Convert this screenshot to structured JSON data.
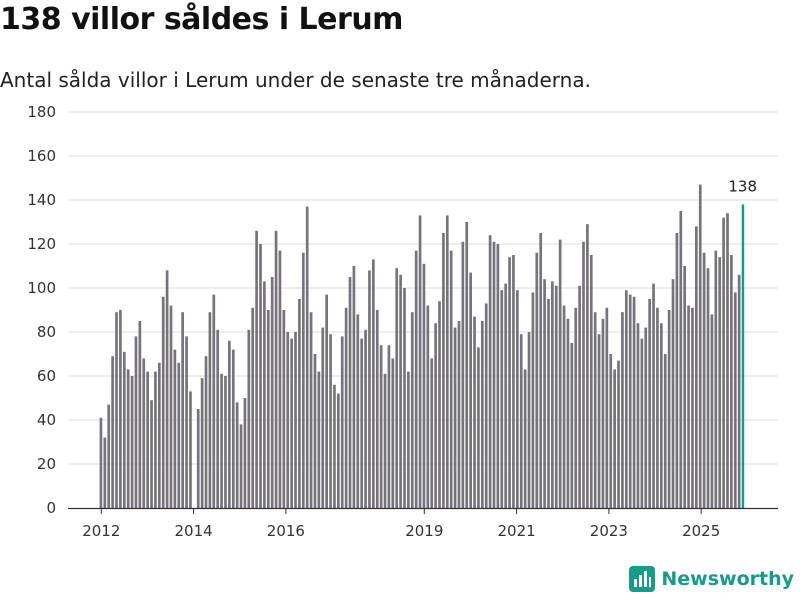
{
  "headline": "138 villor såldes i Lerum",
  "subtitle": "Antal sålda villor i Lerum under de senaste tre månaderna.",
  "brand": {
    "name": "Newsworthy",
    "color": "#1a9a8a"
  },
  "colors": {
    "bar": "#76747a",
    "highlight": "#1a9a8a",
    "grid": "#dddddd",
    "axis": "#333333"
  },
  "chart_data": {
    "type": "bar",
    "title": "138 villor såldes i Lerum",
    "subtitle": "Antal sålda villor i Lerum under de senaste tre månaderna.",
    "xlabel": "",
    "ylabel": "",
    "ylim": [
      0,
      180
    ],
    "yticks": [
      0,
      20,
      40,
      60,
      80,
      100,
      120,
      140,
      160,
      180
    ],
    "grid": true,
    "x_start": 2011.95,
    "x_end": 2025.95,
    "xticks": [
      {
        "value": 2012,
        "label": "2012"
      },
      {
        "value": 2014,
        "label": "2014"
      },
      {
        "value": 2016,
        "label": "2016"
      },
      {
        "value": 2019,
        "label": "2019"
      },
      {
        "value": 2021,
        "label": "2021"
      },
      {
        "value": 2023,
        "label": "2023"
      },
      {
        "value": 2025,
        "label": "2025"
      }
    ],
    "values": [
      41,
      32,
      47,
      69,
      89,
      90,
      71,
      63,
      60,
      78,
      85,
      68,
      62,
      49,
      62,
      66,
      96,
      108,
      92,
      72,
      66,
      89,
      78,
      53,
      0,
      45,
      59,
      69,
      89,
      97,
      81,
      61,
      60,
      76,
      72,
      48,
      38,
      50,
      81,
      91,
      126,
      120,
      103,
      90,
      105,
      126,
      117,
      90,
      80,
      77,
      80,
      95,
      116,
      137,
      89,
      70,
      62,
      82,
      97,
      79,
      56,
      52,
      78,
      91,
      105,
      110,
      88,
      77,
      81,
      108,
      113,
      90,
      74,
      61,
      74,
      68,
      109,
      106,
      100,
      62,
      89,
      117,
      133,
      111,
      92,
      68,
      84,
      94,
      125,
      133,
      117,
      82,
      85,
      121,
      130,
      107,
      87,
      73,
      85,
      93,
      124,
      121,
      120,
      99,
      102,
      114,
      115,
      99,
      79,
      63,
      80,
      98,
      116,
      125,
      104,
      95,
      103,
      101,
      122,
      92,
      86,
      75,
      91,
      101,
      121,
      129,
      115,
      89,
      79,
      86,
      91,
      70,
      63,
      67,
      89,
      99,
      97,
      96,
      84,
      77,
      82,
      95,
      102,
      91,
      84,
      70,
      90,
      104,
      125,
      135,
      110,
      92,
      91,
      128,
      147,
      116,
      109,
      88,
      117,
      114,
      132,
      134,
      115,
      98,
      106,
      138
    ],
    "highlight_last": true,
    "last_value_label": "138"
  }
}
